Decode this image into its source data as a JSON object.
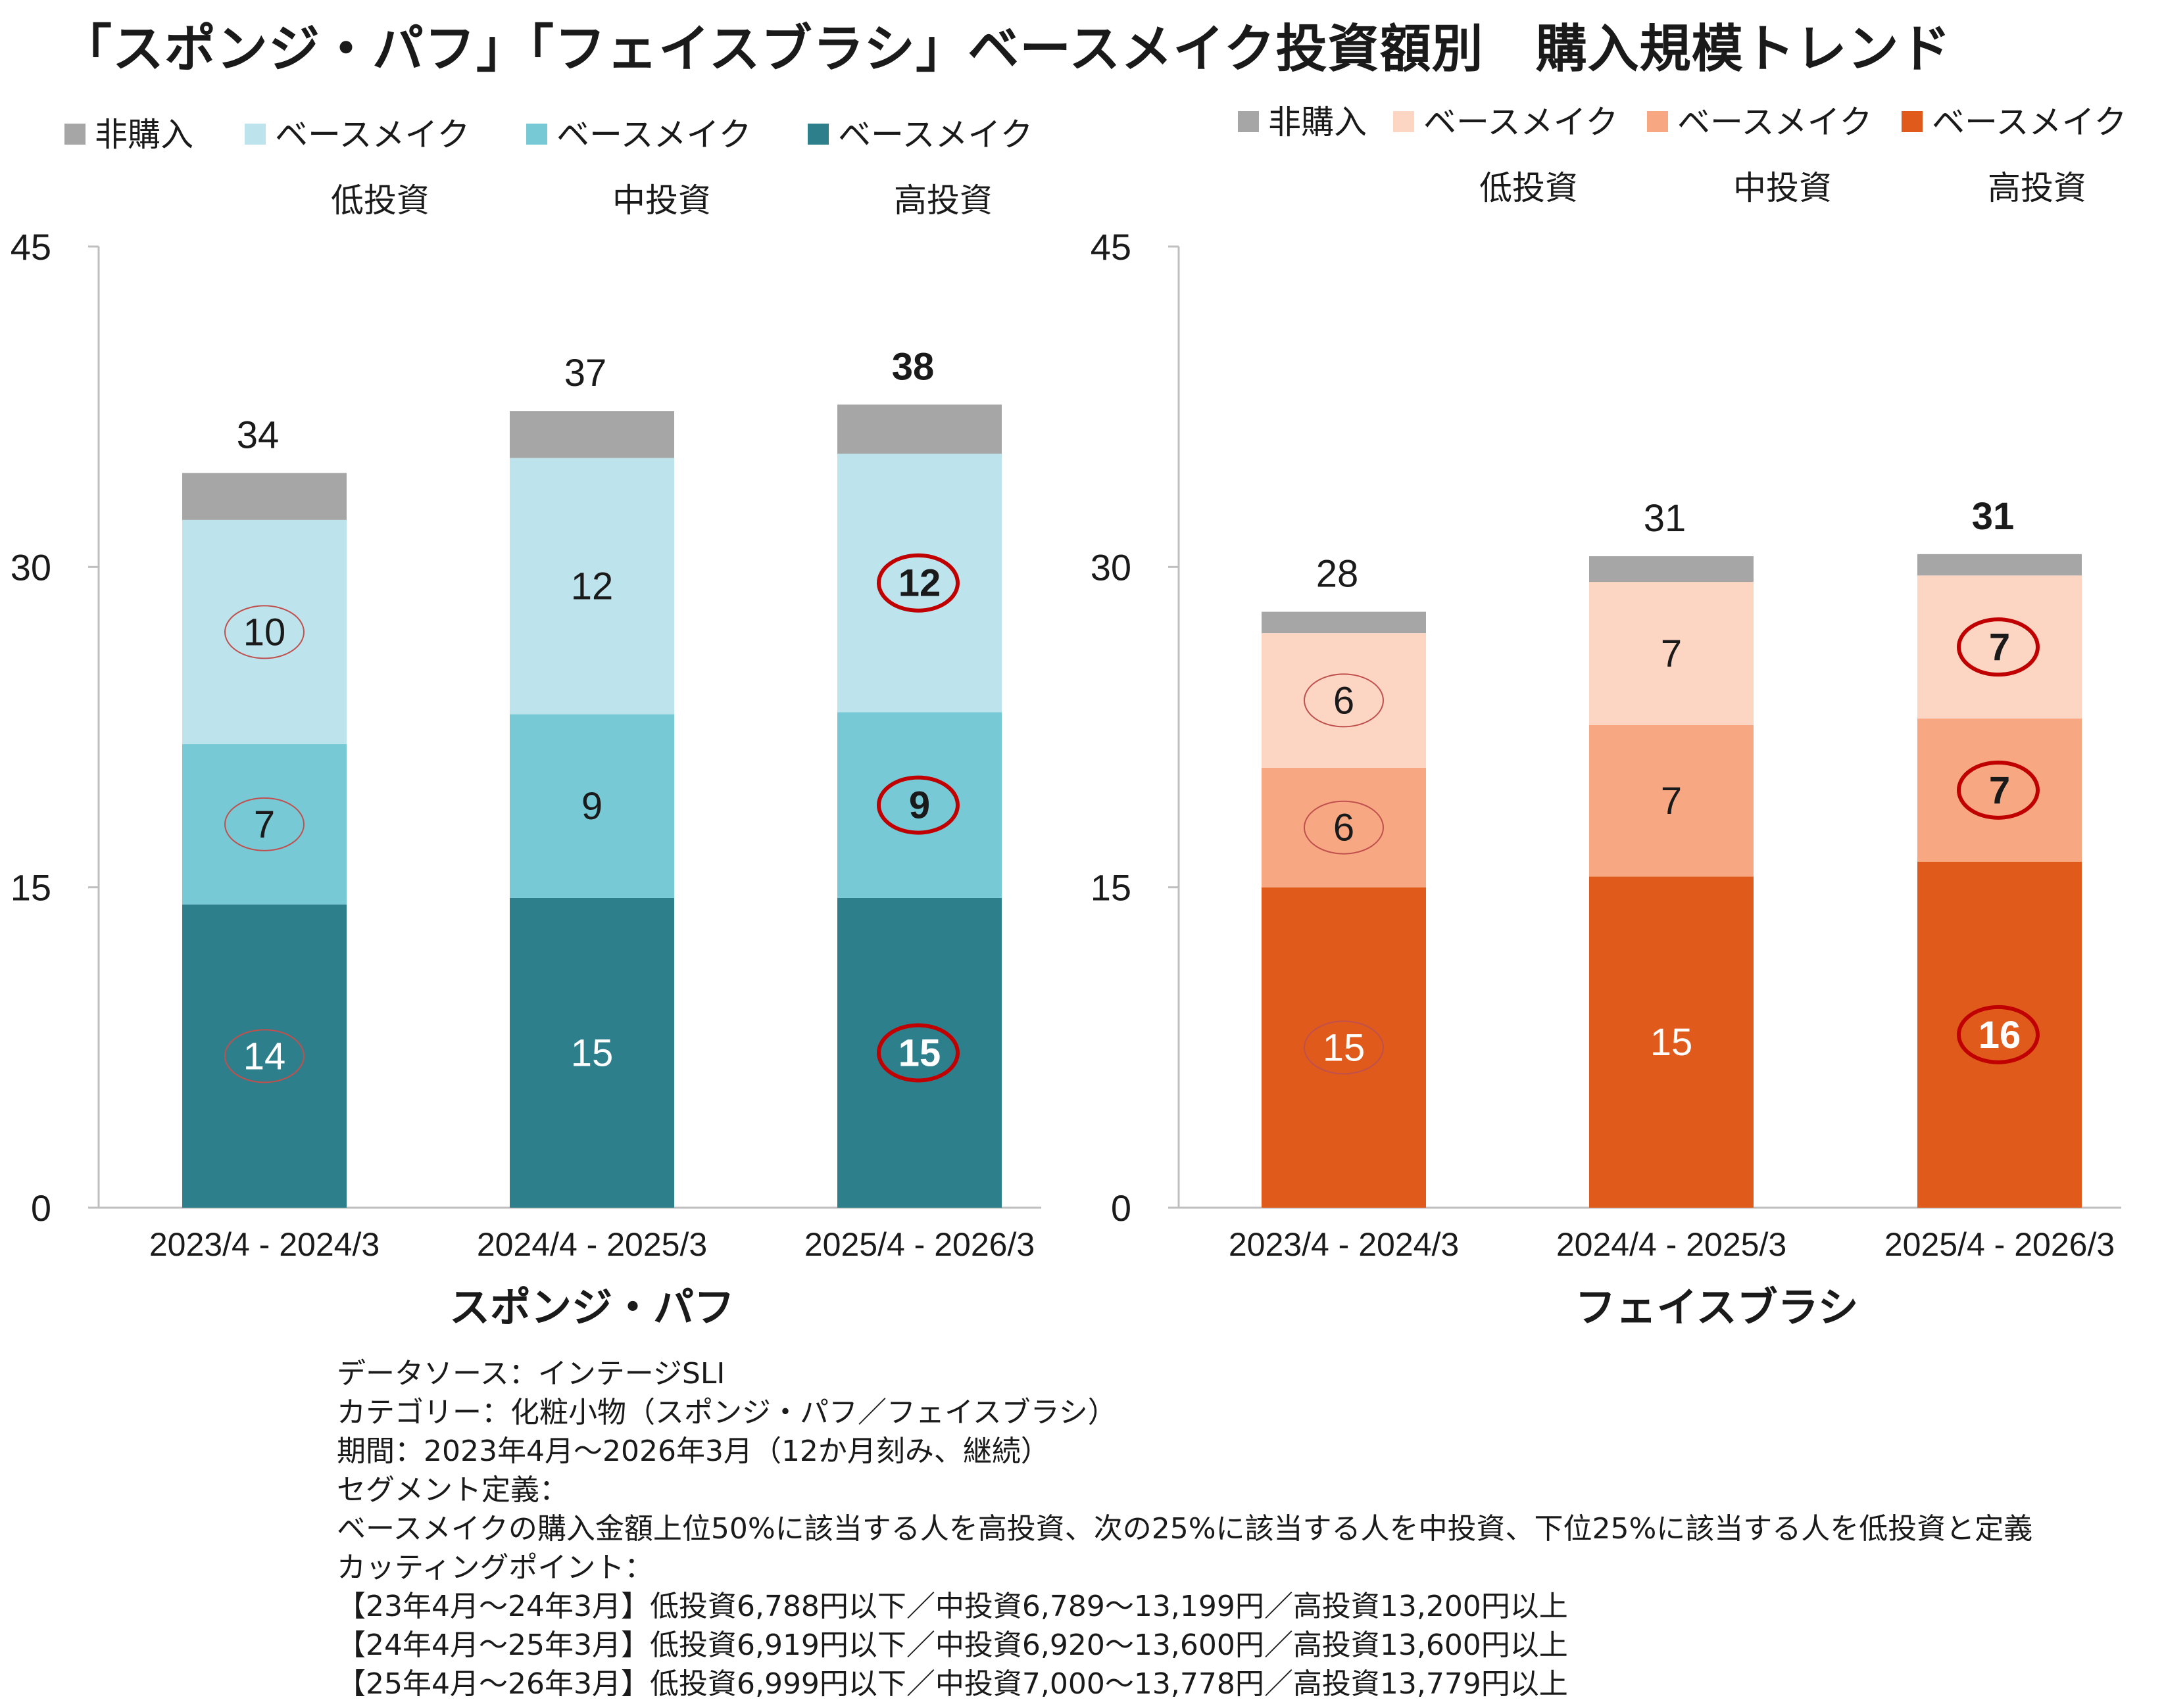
{
  "title": "「スポンジ・パフ」「フェイスブラシ」ベースメイク投資額別　購入規模トレンド",
  "chart_data": [
    {
      "type": "bar",
      "stacked": true,
      "title": "スポンジ・パフ",
      "categories": [
        "2023/4 - 2024/3",
        "2024/4 - 2025/3",
        "2025/4 - 2026/3"
      ],
      "ylim": [
        0,
        45
      ],
      "yticks": [
        0,
        15,
        30,
        45
      ],
      "legend_position": "top",
      "series": [
        {
          "name_line1": "ベースメイク",
          "name_line2": "高投資",
          "color": "#2e7f8c",
          "values": [
            14.2,
            14.5,
            14.5
          ],
          "labels": [
            "14",
            "15",
            "15"
          ],
          "label_color": "#ffffff"
        },
        {
          "name_line1": "ベースメイク",
          "name_line2": "中投資",
          "color": "#78c9d6",
          "values": [
            7.5,
            8.6,
            8.7
          ],
          "labels": [
            "7",
            "9",
            "9"
          ],
          "label_color": "#1a1a1a"
        },
        {
          "name_line1": "ベースメイク",
          "name_line2": "低投資",
          "color": "#bde4ec",
          "values": [
            10.5,
            12.0,
            12.1
          ],
          "labels": [
            "10",
            "12",
            "12"
          ],
          "label_color": "#1a1a1a"
        },
        {
          "name_line1": "非購入",
          "name_line2": "",
          "color": "#a6a6a6",
          "values": [
            2.2,
            2.2,
            2.3
          ],
          "labels": [
            "",
            "",
            ""
          ],
          "label_color": "#1a1a1a"
        }
      ],
      "totals": [
        "34",
        "37",
        "38"
      ],
      "highlight_total_index": 2,
      "circles": [
        {
          "category": 0,
          "series": 0,
          "style": "thin"
        },
        {
          "category": 0,
          "series": 1,
          "style": "thin"
        },
        {
          "category": 0,
          "series": 2,
          "style": "thin"
        },
        {
          "category": 2,
          "series": 0,
          "style": "bold"
        },
        {
          "category": 2,
          "series": 1,
          "style": "bold"
        },
        {
          "category": 2,
          "series": 2,
          "style": "bold"
        }
      ]
    },
    {
      "type": "bar",
      "stacked": true,
      "title": "フェイスブラシ",
      "categories": [
        "2023/4 - 2024/3",
        "2024/4 - 2025/3",
        "2025/4 - 2026/3"
      ],
      "ylim": [
        0,
        45
      ],
      "yticks": [
        0,
        15,
        30,
        45
      ],
      "legend_position": "top",
      "series": [
        {
          "name_line1": "ベースメイク",
          "name_line2": "高投資",
          "color": "#e05a1c",
          "values": [
            15.0,
            15.5,
            16.2
          ],
          "labels": [
            "15",
            "15",
            "16"
          ],
          "label_color": "#ffffff"
        },
        {
          "name_line1": "ベースメイク",
          "name_line2": "中投資",
          "color": "#f7a883",
          "values": [
            5.6,
            7.1,
            6.7
          ],
          "labels": [
            "6",
            "7",
            "7"
          ],
          "label_color": "#1a1a1a"
        },
        {
          "name_line1": "ベースメイク",
          "name_line2": "低投資",
          "color": "#fcd5c3",
          "values": [
            6.3,
            6.7,
            6.7
          ],
          "labels": [
            "6",
            "7",
            "7"
          ],
          "label_color": "#1a1a1a"
        },
        {
          "name_line1": "非購入",
          "name_line2": "",
          "color": "#a6a6a6",
          "values": [
            1.0,
            1.2,
            1.0
          ],
          "labels": [
            "",
            "",
            ""
          ],
          "label_color": "#1a1a1a"
        }
      ],
      "totals": [
        "28",
        "31",
        "31"
      ],
      "highlight_total_index": 2,
      "circles": [
        {
          "category": 0,
          "series": 0,
          "style": "thin"
        },
        {
          "category": 0,
          "series": 1,
          "style": "thin"
        },
        {
          "category": 0,
          "series": 2,
          "style": "thin"
        },
        {
          "category": 2,
          "series": 0,
          "style": "bold"
        },
        {
          "category": 2,
          "series": 1,
          "style": "bold"
        },
        {
          "category": 2,
          "series": 2,
          "style": "bold"
        }
      ]
    }
  ],
  "notes": [
    "データソース：インテージSLI",
    "カテゴリー：化粧小物（スポンジ・パフ／フェイスブラシ）",
    "期間：2023年4月～2026年3月（12か月刻み、継続）",
    "セグメント定義：",
    "ベースメイクの購入金額上位50%に該当する人を高投資、次の25%に該当する人を中投資、下位25%に該当する人を低投資と定義",
    "カッティングポイント：",
    "【23年4月～24年3月】低投資6,788円以下／中投資6,789～13,199円／高投資13,200円以上",
    "【24年4月～25年3月】低投資6,919円以下／中投資6,920～13,600円／高投資13,600円以上",
    "【25年4月～26年3月】低投資6,999円以下／中投資7,000～13,778円／高投資13,779円以上"
  ]
}
